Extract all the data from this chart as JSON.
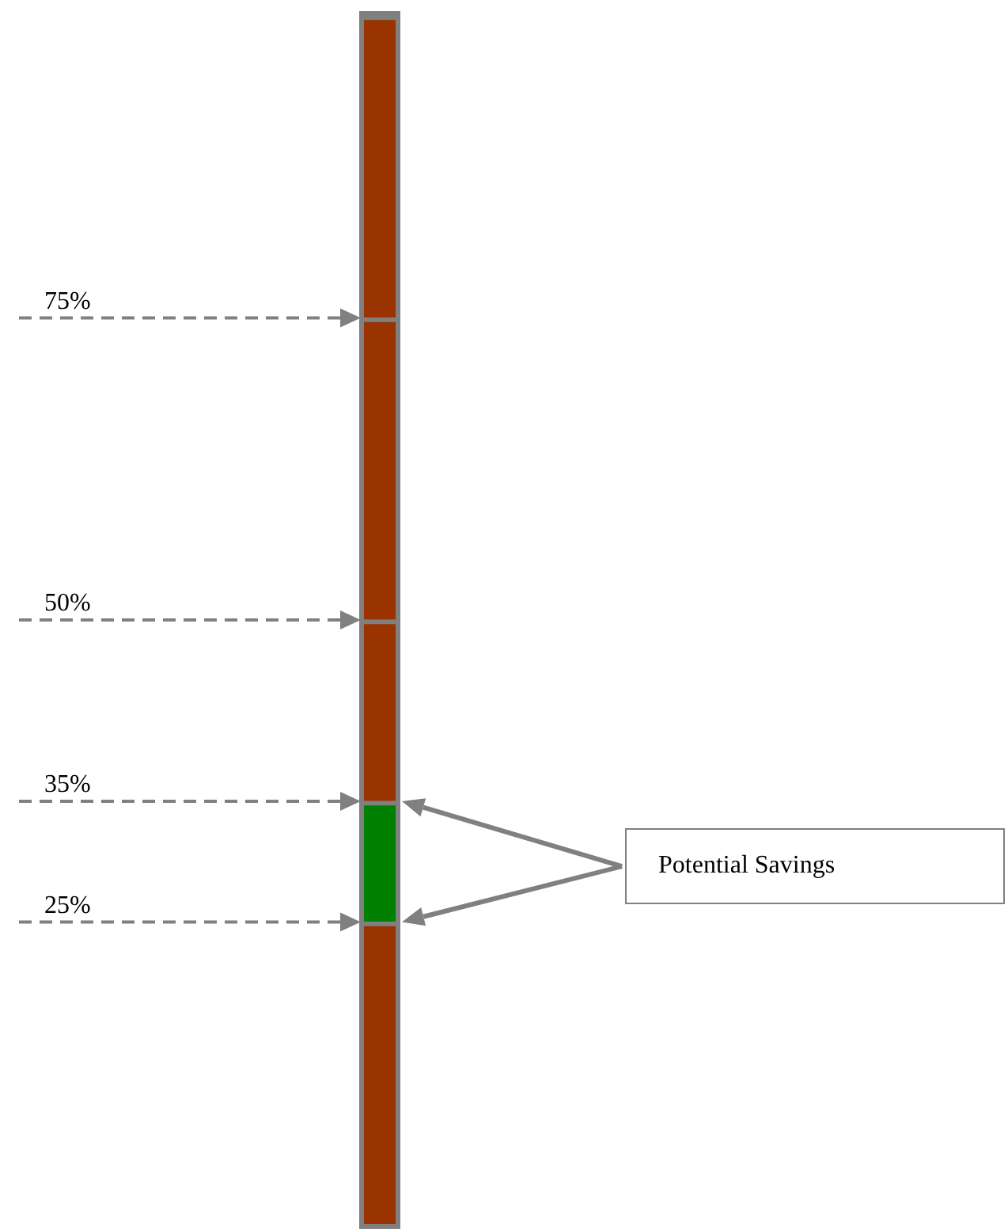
{
  "chart_data": {
    "type": "bar",
    "stacked": true,
    "categories": [
      null
    ],
    "series": [
      {
        "color": "#993300",
        "values": [
          25
        ]
      },
      {
        "color": "#008000",
        "values": [
          10
        ]
      },
      {
        "color": "#993300",
        "values": [
          15
        ]
      },
      {
        "color": "#993300",
        "values": [
          25
        ]
      },
      {
        "color": "#993300",
        "values": [
          25
        ]
      }
    ],
    "ylim": [
      0,
      100
    ],
    "tick_labels": false,
    "grid": false,
    "legend": false,
    "ref_lines": [
      {
        "axis": "y",
        "value": 75,
        "label": "75%",
        "color": "#808080",
        "line_style": "dashed"
      },
      {
        "axis": "y",
        "value": 50,
        "label": "50%",
        "color": "#808080",
        "line_style": "dashed"
      },
      {
        "axis": "y",
        "value": 35,
        "label": "35%",
        "color": "#808080",
        "line_style": "dashed"
      },
      {
        "axis": "y",
        "value": 25,
        "label": "25%",
        "color": "#808080",
        "line_style": "dashed"
      }
    ],
    "annotations": [
      "Potential Savings"
    ]
  }
}
